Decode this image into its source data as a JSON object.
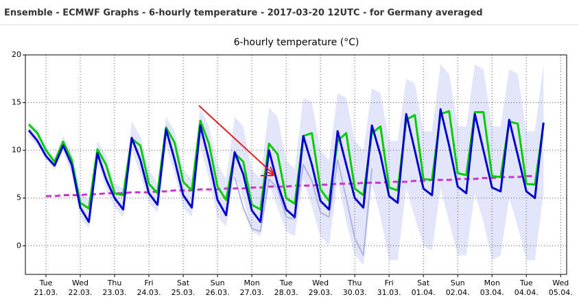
{
  "page_title": "Ensemble - ECMWF Graphs - 6-hourly temperature - 2017-03-20 12UTC - for Germany averaged",
  "chart_data": {
    "type": "line",
    "title": "6-hourly temperature (°C)",
    "x": [
      0,
      1,
      2,
      3,
      4,
      5,
      6,
      7,
      8,
      9,
      10,
      11,
      12,
      13,
      14,
      15,
      16,
      17,
      18,
      19,
      20,
      21,
      22,
      23,
      24,
      25,
      26,
      27,
      28,
      29,
      30,
      31,
      32,
      33,
      34,
      35,
      36,
      37,
      38,
      39,
      40,
      41,
      42,
      43,
      44,
      45,
      46,
      47,
      48,
      49,
      50,
      51,
      52,
      53,
      54,
      55,
      56,
      57,
      58,
      59,
      60
    ],
    "xlim": [
      -0.4,
      62.7
    ],
    "xticks": [
      {
        "value": 2,
        "label": "Tue 21.03."
      },
      {
        "value": 6,
        "label": "Wed 22.03."
      },
      {
        "value": 10,
        "label": "Thu 23.03."
      },
      {
        "value": 14,
        "label": "Fri 24.03."
      },
      {
        "value": 18,
        "label": "Sat 25.03."
      },
      {
        "value": 22,
        "label": "Sun 26.03."
      },
      {
        "value": 26,
        "label": "Mon 27.03."
      },
      {
        "value": 30,
        "label": "Tue 28.03."
      },
      {
        "value": 34,
        "label": "Wed 29.03."
      },
      {
        "value": 38,
        "label": "Thu 30.03."
      },
      {
        "value": 42,
        "label": "Fri 31.03."
      },
      {
        "value": 46,
        "label": "Sat 01.04."
      },
      {
        "value": 50,
        "label": "Sun 02.04."
      },
      {
        "value": 54,
        "label": "Mon 03.04."
      },
      {
        "value": 58,
        "label": "Tue 04.04."
      },
      {
        "value": 62,
        "label": "Wed 05.04."
      }
    ],
    "ylim": [
      -3,
      20
    ],
    "yticks": [
      0,
      5,
      10,
      15,
      20
    ],
    "grid": true,
    "band_color": "#e3e5fa",
    "band_high": [
      13,
      12.2,
      10.5,
      9.2,
      11.5,
      9.8,
      5.5,
      4.8,
      11,
      9.5,
      6.5,
      6,
      13,
      11.5,
      8,
      6.5,
      13.5,
      12,
      8,
      7,
      14.5,
      12.5,
      8.5,
      7,
      13.5,
      12.5,
      8,
      7,
      14.5,
      13.5,
      9,
      8,
      15.5,
      15,
      10,
      9,
      16,
      15.5,
      11,
      10,
      16.5,
      16,
      11,
      11,
      17.5,
      17,
      12,
      12,
      19,
      18,
      12.5,
      12.5,
      19,
      18.5,
      12.5,
      12.5,
      18.5,
      18,
      12,
      12,
      19
    ],
    "band_low": [
      11.5,
      10.5,
      9,
      8,
      9.8,
      7.5,
      3,
      1.8,
      8.8,
      6,
      4,
      3,
      10,
      7.5,
      4.5,
      3.5,
      10.5,
      7.5,
      4,
      3,
      10.5,
      7,
      3,
      2,
      7.5,
      5,
      1.5,
      1,
      6.5,
      4,
      1.5,
      1,
      7,
      4,
      1,
      0,
      7,
      2.5,
      -1,
      -2,
      6.5,
      3,
      -1.5,
      -1.5,
      6,
      3,
      0,
      -0.5,
      6,
      2.5,
      -1,
      -1,
      5.5,
      2.5,
      -1.5,
      -1,
      5,
      2,
      -1.5,
      -1.5,
      5.5
    ],
    "series": [
      {
        "color": "#b0b4e4",
        "width": 2,
        "values": [
          null,
          null,
          null,
          null,
          null,
          null,
          null,
          null,
          null,
          null,
          null,
          null,
          null,
          null,
          null,
          null,
          null,
          null,
          null,
          null,
          null,
          null,
          null,
          null,
          7.2,
          4,
          1.8,
          1.5,
          7,
          6,
          3,
          2.8,
          8.5,
          6.8,
          3.5,
          3,
          9,
          5,
          0.8,
          -1,
          8.1,
          null,
          null,
          null,
          null,
          null,
          null,
          null,
          null,
          null,
          null,
          null,
          null,
          null,
          null,
          null,
          null,
          null,
          null,
          null,
          null
        ]
      },
      {
        "color": "#cc33cc",
        "width": 3,
        "dash": "8,5",
        "values": [
          null,
          null,
          5.2,
          5.2,
          5.3,
          5.3,
          5.3,
          5.4,
          5.4,
          5.5,
          5.5,
          5.5,
          5.6,
          5.6,
          5.6,
          5.7,
          5.7,
          5.8,
          5.8,
          5.8,
          5.9,
          5.9,
          5.9,
          6.0,
          6.0,
          6.0,
          6.1,
          6.1,
          6.2,
          6.2,
          6.2,
          6.3,
          6.3,
          6.3,
          6.4,
          6.4,
          6.5,
          6.5,
          6.5,
          6.6,
          6.6,
          6.6,
          6.7,
          6.7,
          6.7,
          6.8,
          6.8,
          6.9,
          6.9,
          6.9,
          7.0,
          7.0,
          7.0,
          7.1,
          7.1,
          7.2,
          7.2,
          7.2,
          7.3,
          7.3,
          null
        ]
      },
      {
        "color": "#00cc00",
        "width": 3,
        "values": [
          12.7,
          11.8,
          10,
          8.8,
          10.9,
          9,
          4.5,
          3.9,
          10.1,
          8.5,
          5.5,
          5.3,
          11.2,
          10.5,
          6.5,
          5.5,
          12.4,
          10.8,
          6.7,
          5.8,
          13.1,
          10.7,
          6.2,
          4.8,
          9.7,
          8.8,
          4.3,
          3.8,
          10.7,
          9.6,
          5,
          4.4,
          11.5,
          11.8,
          5.9,
          4.7,
          11,
          11.8,
          6,
          5.3,
          11.8,
          12.5,
          6.1,
          5.8,
          13.2,
          13.7,
          7,
          6.9,
          13.8,
          14.1,
          7.6,
          7.4,
          14,
          14,
          7.3,
          7.2,
          13,
          12.8,
          6.5,
          6.4,
          12.8
        ]
      },
      {
        "color": "#0000cc",
        "width": 3,
        "values": [
          12.1,
          11,
          9.4,
          8.4,
          10.5,
          8.5,
          4,
          2.5,
          9.7,
          7,
          5,
          3.8,
          11.3,
          9,
          5.5,
          4.3,
          12.2,
          9,
          5.3,
          4,
          12.6,
          9,
          4.8,
          3.2,
          9.8,
          7.5,
          3.7,
          2.5,
          10,
          6.5,
          3.8,
          3,
          11.5,
          8.5,
          4.7,
          3.8,
          12,
          8.5,
          5,
          4,
          12.6,
          9.5,
          5.2,
          4.5,
          13.8,
          10,
          6,
          5.3,
          14.3,
          10.5,
          6.2,
          5.5,
          13.8,
          10,
          6.1,
          5.7,
          13.2,
          9.5,
          5.7,
          5,
          12.9
        ]
      }
    ]
  }
}
